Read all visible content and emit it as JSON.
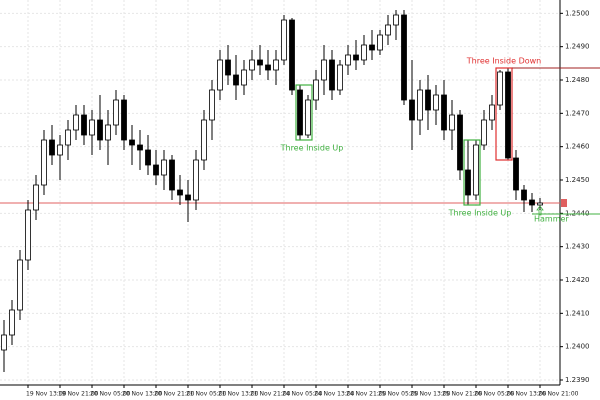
{
  "chart_data": {
    "type": "candlestick",
    "categories": [
      null,
      null,
      null,
      "19 Nov 13:00",
      null,
      null,
      null,
      "19 Nov 21:00",
      null,
      null,
      null,
      "20 Nov 05:00",
      null,
      null,
      null,
      "20 Nov 13:00",
      null,
      null,
      null,
      "20 Nov 21:00",
      null,
      null,
      null,
      "21 Nov 05:00",
      null,
      null,
      null,
      "21 Nov 13:00",
      null,
      null,
      null,
      "21 Nov 21:00",
      null,
      null,
      null,
      "24 Nov 05:00",
      null,
      null,
      null,
      "24 Nov 13:00",
      null,
      null,
      null,
      "24 Nov 21:00",
      null,
      null,
      null,
      "25 Nov 05:00",
      null,
      null,
      null,
      "25 Nov 13:00",
      null,
      null,
      null,
      "25 Nov 21:00",
      null,
      null,
      null,
      "26 Nov 05:00",
      null,
      null,
      null,
      "26 Nov 13:00",
      null,
      null,
      null,
      "26 Nov 21:00"
    ],
    "open": [
      1.2399,
      1.24035,
      1.2411,
      1.2426,
      1.2441,
      1.24485,
      1.2462,
      1.24575,
      1.24605,
      1.2465,
      1.24695,
      1.24635,
      1.2468,
      1.2462,
      1.24665,
      1.2474,
      1.2462,
      1.24605,
      1.2459,
      1.24545,
      1.24515,
      1.2456,
      1.2447,
      1.24455,
      1.2444,
      1.2456,
      1.2468,
      1.2477,
      1.2486,
      1.24815,
      1.24785,
      1.2483,
      1.2486,
      1.24845,
      1.2483,
      1.2486,
      1.2498,
      1.2477,
      1.24635,
      1.2474,
      1.248,
      1.2486,
      1.2477,
      1.24845,
      1.24875,
      1.2486,
      1.24905,
      1.2489,
      1.24935,
      1.24965,
      1.24995,
      1.2474,
      1.2468,
      1.2477,
      1.2471,
      1.24755,
      1.2465,
      1.24695,
      1.2453,
      1.24455,
      1.24605,
      1.2468,
      1.24725,
      1.24824,
      1.24566,
      1.2447,
      1.2444,
      1.24425
    ],
    "high": [
      1.2408,
      1.2414,
      1.2429,
      1.2444,
      1.24515,
      1.2465,
      1.24665,
      1.24635,
      1.2468,
      1.24725,
      1.24725,
      1.2471,
      1.24755,
      1.2471,
      1.2477,
      1.24755,
      1.24665,
      1.2465,
      1.24635,
      1.2459,
      1.2459,
      1.24575,
      1.24515,
      1.245,
      1.2459,
      1.2471,
      1.248,
      1.2489,
      1.24905,
      1.24875,
      1.2486,
      1.2489,
      1.24905,
      1.2489,
      1.2489,
      1.24995,
      1.24986,
      1.24785,
      1.24755,
      1.2483,
      1.24905,
      1.2489,
      1.2486,
      1.24905,
      1.2492,
      1.24935,
      1.2495,
      1.2495,
      1.24995,
      1.2501,
      1.2501,
      1.2486,
      1.248,
      1.24815,
      1.24785,
      1.248,
      1.2474,
      1.2471,
      1.2462,
      1.2462,
      1.2471,
      1.24755,
      1.2483,
      1.24836,
      1.2459,
      1.24485,
      1.24461,
      1.24446
    ],
    "low": [
      1.23924,
      1.24005,
      1.2408,
      1.2423,
      1.2438,
      1.24455,
      1.24545,
      1.245,
      1.2456,
      1.2462,
      1.24605,
      1.24575,
      1.2459,
      1.24545,
      1.24635,
      1.2459,
      1.24545,
      1.2453,
      1.24515,
      1.24485,
      1.2447,
      1.2444,
      1.24425,
      1.24374,
      1.2441,
      1.2453,
      1.2462,
      1.2474,
      1.24785,
      1.2474,
      1.24755,
      1.248,
      1.24815,
      1.248,
      1.24785,
      1.24845,
      1.24755,
      1.2462,
      1.24626,
      1.2471,
      1.24755,
      1.2474,
      1.24755,
      1.24815,
      1.2483,
      1.24845,
      1.2486,
      1.24875,
      1.24905,
      1.2492,
      1.24725,
      1.2459,
      1.24635,
      1.2465,
      1.24665,
      1.2462,
      1.2459,
      1.245,
      1.24425,
      1.2444,
      1.2459,
      1.2465,
      1.2471,
      1.2456,
      1.2444,
      1.24404,
      1.24404,
      1.2441
    ],
    "close": [
      1.24035,
      1.2411,
      1.2426,
      1.2441,
      1.24485,
      1.2462,
      1.24575,
      1.24605,
      1.2465,
      1.24695,
      1.24635,
      1.2468,
      1.2462,
      1.24665,
      1.2474,
      1.2462,
      1.24605,
      1.2459,
      1.24545,
      1.24515,
      1.2456,
      1.2447,
      1.24455,
      1.2444,
      1.2456,
      1.2468,
      1.2477,
      1.2486,
      1.24815,
      1.24785,
      1.2483,
      1.2486,
      1.24845,
      1.2483,
      1.2486,
      1.2498,
      1.2477,
      1.24635,
      1.2474,
      1.248,
      1.2486,
      1.2477,
      1.24845,
      1.24875,
      1.2486,
      1.24905,
      1.2489,
      1.24935,
      1.24965,
      1.24995,
      1.2474,
      1.2468,
      1.2477,
      1.2471,
      1.24755,
      1.2465,
      1.24695,
      1.2453,
      1.24455,
      1.24605,
      1.2468,
      1.24725,
      1.24824,
      1.24566,
      1.2447,
      1.2444,
      1.24425,
      1.24431
    ],
    "ylim": [
      1.23885,
      1.2504
    ],
    "yticks": [
      {
        "value": 1.239,
        "label": "1.2390"
      },
      {
        "value": 1.24,
        "label": "1.2400"
      },
      {
        "value": 1.241,
        "label": "1.2410"
      },
      {
        "value": 1.242,
        "label": "1.2420"
      },
      {
        "value": 1.243,
        "label": "1.2430"
      },
      {
        "value": 1.244,
        "label": "1.2440"
      },
      {
        "value": 1.245,
        "label": "1.2450"
      },
      {
        "value": 1.246,
        "label": "1.2460"
      },
      {
        "value": 1.247,
        "label": "1.2470"
      },
      {
        "value": 1.248,
        "label": "1.2480"
      },
      {
        "value": 1.249,
        "label": "1.2490"
      },
      {
        "value": 1.25,
        "label": "1.2500"
      }
    ],
    "grid": true,
    "up_color": "#ffffff",
    "down_color": "#000000",
    "price_line_color": "#e06060",
    "patterns": [
      {
        "label": "Three Inside Up",
        "color": "#40b040",
        "start": 37,
        "end": 38,
        "side": "below"
      },
      {
        "label": "Three Inside Up",
        "color": "#40b040",
        "start": 58,
        "end": 59,
        "side": "below"
      },
      {
        "label": "Three Inside Down",
        "color": "#e03030",
        "start": 62,
        "end": 63,
        "side": "above"
      },
      {
        "label": "Hammer",
        "color": "#40b040",
        "start": 66,
        "end": 66,
        "side": "below"
      }
    ]
  }
}
